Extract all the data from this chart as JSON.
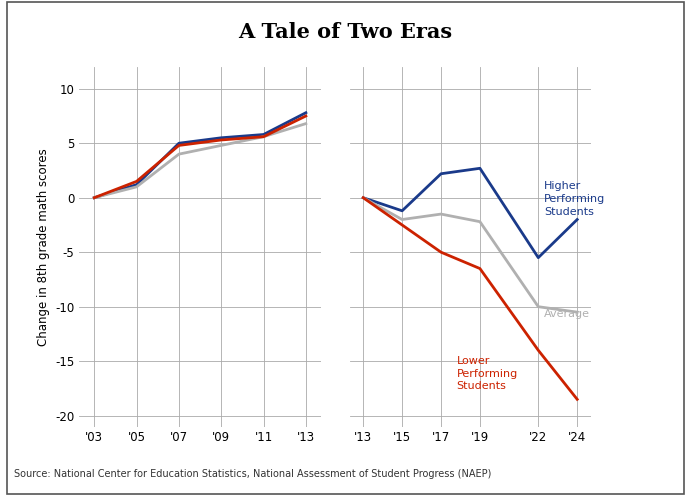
{
  "title": "A Tale of Two Eras",
  "ylabel": "Change in 8th grade math scores",
  "source": "Source: National Center for Education Statistics, National Assessment of Student Progress (NAEP)",
  "left_years": [
    2003,
    2005,
    2007,
    2009,
    2011,
    2013
  ],
  "left_xticks": [
    "'03",
    "'05",
    "'07",
    "'09",
    "'11",
    "'13"
  ],
  "left_higher": [
    0,
    1.2,
    5.0,
    5.5,
    5.8,
    7.8
  ],
  "left_average": [
    0,
    1.0,
    4.0,
    4.8,
    5.6,
    6.8
  ],
  "left_lower": [
    0,
    1.5,
    4.8,
    5.3,
    5.6,
    7.5
  ],
  "right_years": [
    2013,
    2015,
    2017,
    2019,
    2022,
    2024
  ],
  "right_xticks": [
    "'13",
    "'15",
    "'17",
    "'19",
    "'22",
    "'24"
  ],
  "right_higher": [
    0,
    -1.2,
    2.2,
    2.7,
    -5.5,
    -2.0
  ],
  "right_average": [
    0,
    -2.0,
    -1.5,
    -2.2,
    -10.0,
    -10.5
  ],
  "right_lower": [
    0,
    -2.5,
    -5.0,
    -6.5,
    -14.0,
    -18.5
  ],
  "color_higher": "#1a3a8a",
  "color_average": "#b0b0b0",
  "color_lower": "#cc2200",
  "ylim": [
    -21,
    12
  ],
  "yticks": [
    -20,
    -15,
    -10,
    -5,
    0,
    5,
    10
  ],
  "label_higher": "Higher\nPerforming\nStudents",
  "label_average": "Average",
  "label_lower": "Lower\nPerforming\nStudents",
  "linewidth": 2.0
}
